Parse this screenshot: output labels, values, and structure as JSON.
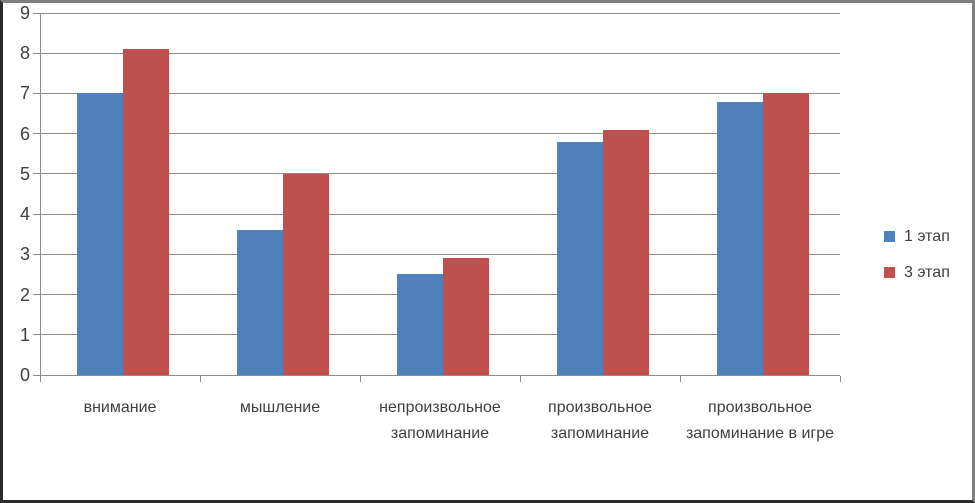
{
  "chart_data": {
    "type": "bar",
    "title": "",
    "xlabel": "",
    "ylabel": "",
    "categories": [
      "внимание",
      "мышление",
      "непроизвольное запоминание",
      "произвольное запоминание",
      "произвольное запоминание в игре"
    ],
    "series": [
      {
        "name": "1 этап",
        "color": "#4F81BD",
        "values": [
          7,
          3.6,
          2.5,
          5.8,
          6.8
        ]
      },
      {
        "name": "3 этап",
        "color": "#C0504D",
        "values": [
          8.1,
          5,
          2.9,
          6.1,
          7
        ]
      }
    ],
    "ylim": [
      0,
      9
    ],
    "yticks": [
      0,
      1,
      2,
      3,
      4,
      5,
      6,
      7,
      8,
      9
    ],
    "grid": true,
    "legend_position": "right"
  },
  "colors": {
    "bar_blue": "#4F81BD",
    "bar_red": "#C0504D",
    "gridline": "#8c8c8c",
    "axis": "#8c8c8c",
    "text": "#3f3f3f",
    "background": "#ffffff"
  }
}
